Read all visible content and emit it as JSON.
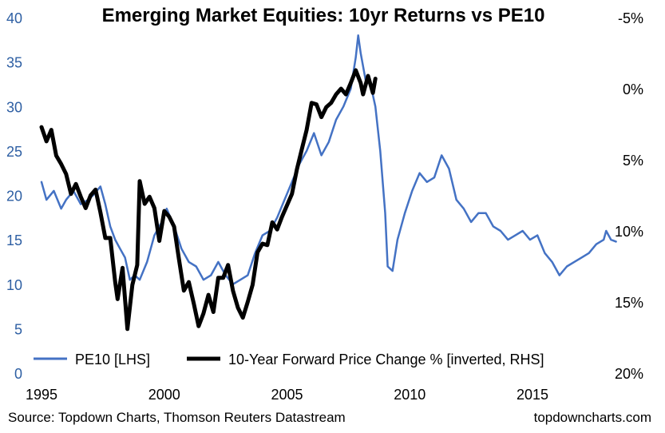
{
  "chart_data": {
    "type": "line",
    "title": "Emerging Market Equities: 10yr Returns vs PE10",
    "x_ticks": [
      "1995",
      "2000",
      "2005",
      "2010",
      "2015"
    ],
    "xlim": [
      1995,
      2019
    ],
    "y_left": {
      "ticks": [
        "0",
        "5",
        "10",
        "15",
        "20",
        "25",
        "30",
        "35",
        "40"
      ],
      "ylim": [
        0,
        40
      ]
    },
    "y_right": {
      "ticks": [
        "-5%",
        "0%",
        "5%",
        "10%",
        "15%",
        "20%"
      ],
      "ylim": [
        -5,
        20
      ],
      "inverted": true
    },
    "grid": false,
    "legend_position": "bottom",
    "series": [
      {
        "name": "PE10 [LHS]",
        "axis": "left",
        "color": "#4472c4",
        "points": [
          [
            1995.0,
            21.5
          ],
          [
            1995.2,
            19.5
          ],
          [
            1995.5,
            20.5
          ],
          [
            1995.8,
            18.5
          ],
          [
            1996.0,
            19.5
          ],
          [
            1996.3,
            20.5
          ],
          [
            1996.6,
            19.0
          ],
          [
            1996.9,
            19.5
          ],
          [
            1997.1,
            20.0
          ],
          [
            1997.4,
            21.0
          ],
          [
            1997.6,
            19.0
          ],
          [
            1997.8,
            16.5
          ],
          [
            1998.0,
            15.0
          ],
          [
            1998.2,
            14.0
          ],
          [
            1998.4,
            13.0
          ],
          [
            1998.6,
            10.5
          ],
          [
            1998.8,
            11.0
          ],
          [
            1999.0,
            10.5
          ],
          [
            1999.3,
            12.5
          ],
          [
            1999.6,
            15.5
          ],
          [
            1999.9,
            17.0
          ],
          [
            2000.1,
            18.5
          ],
          [
            2000.4,
            16.5
          ],
          [
            2000.7,
            14.0
          ],
          [
            2001.0,
            12.5
          ],
          [
            2001.3,
            12.0
          ],
          [
            2001.6,
            10.5
          ],
          [
            2001.9,
            11.0
          ],
          [
            2002.2,
            12.5
          ],
          [
            2002.5,
            11.0
          ],
          [
            2002.8,
            10.0
          ],
          [
            2003.1,
            10.5
          ],
          [
            2003.4,
            11.0
          ],
          [
            2003.7,
            13.5
          ],
          [
            2004.0,
            15.5
          ],
          [
            2004.3,
            16.0
          ],
          [
            2004.6,
            17.5
          ],
          [
            2004.9,
            19.5
          ],
          [
            2005.2,
            21.5
          ],
          [
            2005.5,
            23.5
          ],
          [
            2005.8,
            25.0
          ],
          [
            2006.1,
            27.0
          ],
          [
            2006.4,
            24.5
          ],
          [
            2006.7,
            26.0
          ],
          [
            2007.0,
            28.5
          ],
          [
            2007.3,
            30.0
          ],
          [
            2007.6,
            32.0
          ],
          [
            2007.8,
            35.5
          ],
          [
            2007.9,
            38.0
          ],
          [
            2008.0,
            36.0
          ],
          [
            2008.2,
            33.0
          ],
          [
            2008.4,
            32.5
          ],
          [
            2008.6,
            30.0
          ],
          [
            2008.8,
            25.0
          ],
          [
            2009.0,
            18.0
          ],
          [
            2009.1,
            12.0
          ],
          [
            2009.3,
            11.5
          ],
          [
            2009.5,
            15.0
          ],
          [
            2009.8,
            18.0
          ],
          [
            2010.1,
            20.5
          ],
          [
            2010.4,
            22.5
          ],
          [
            2010.7,
            21.5
          ],
          [
            2011.0,
            22.0
          ],
          [
            2011.3,
            24.5
          ],
          [
            2011.6,
            23.0
          ],
          [
            2011.9,
            19.5
          ],
          [
            2012.2,
            18.5
          ],
          [
            2012.5,
            17.0
          ],
          [
            2012.8,
            18.0
          ],
          [
            2013.1,
            18.0
          ],
          [
            2013.4,
            16.5
          ],
          [
            2013.7,
            16.0
          ],
          [
            2014.0,
            15.0
          ],
          [
            2014.3,
            15.5
          ],
          [
            2014.6,
            16.0
          ],
          [
            2014.9,
            15.0
          ],
          [
            2015.2,
            15.5
          ],
          [
            2015.5,
            13.5
          ],
          [
            2015.8,
            12.5
          ],
          [
            2016.1,
            11.0
          ],
          [
            2016.4,
            12.0
          ],
          [
            2016.7,
            12.5
          ],
          [
            2017.0,
            13.0
          ],
          [
            2017.3,
            13.5
          ],
          [
            2017.6,
            14.5
          ],
          [
            2017.9,
            15.0
          ],
          [
            2018.0,
            16.0
          ],
          [
            2018.2,
            15.0
          ],
          [
            2018.4,
            14.8
          ]
        ]
      },
      {
        "name": "10-Year Forward Price Change % [inverted, RHS]",
        "axis": "right",
        "color": "#000000",
        "points": [
          [
            1995.0,
            2.7
          ],
          [
            1995.2,
            3.7
          ],
          [
            1995.4,
            2.9
          ],
          [
            1995.6,
            4.7
          ],
          [
            1995.8,
            5.3
          ],
          [
            1996.0,
            6.0
          ],
          [
            1996.2,
            7.4
          ],
          [
            1996.4,
            6.7
          ],
          [
            1996.6,
            7.6
          ],
          [
            1996.8,
            8.4
          ],
          [
            1997.0,
            7.5
          ],
          [
            1997.2,
            7.1
          ],
          [
            1997.4,
            8.7
          ],
          [
            1997.6,
            10.5
          ],
          [
            1997.8,
            10.5
          ],
          [
            1998.0,
            13.6
          ],
          [
            1998.1,
            14.8
          ],
          [
            1998.3,
            12.6
          ],
          [
            1998.5,
            16.9
          ],
          [
            1998.7,
            13.8
          ],
          [
            1998.9,
            12.4
          ],
          [
            1999.0,
            6.5
          ],
          [
            1999.2,
            8.1
          ],
          [
            1999.4,
            7.6
          ],
          [
            1999.6,
            8.4
          ],
          [
            1999.8,
            10.7
          ],
          [
            2000.0,
            8.6
          ],
          [
            2000.2,
            9.0
          ],
          [
            2000.4,
            9.7
          ],
          [
            2000.6,
            12.0
          ],
          [
            2000.8,
            14.2
          ],
          [
            2001.0,
            13.6
          ],
          [
            2001.2,
            15.1
          ],
          [
            2001.4,
            16.7
          ],
          [
            2001.6,
            15.8
          ],
          [
            2001.8,
            14.5
          ],
          [
            2002.0,
            15.7
          ],
          [
            2002.2,
            13.3
          ],
          [
            2002.4,
            13.3
          ],
          [
            2002.6,
            12.4
          ],
          [
            2002.8,
            14.2
          ],
          [
            2003.0,
            15.4
          ],
          [
            2003.2,
            16.1
          ],
          [
            2003.4,
            15.0
          ],
          [
            2003.6,
            13.8
          ],
          [
            2003.8,
            11.5
          ],
          [
            2004.0,
            10.9
          ],
          [
            2004.2,
            11.0
          ],
          [
            2004.4,
            9.4
          ],
          [
            2004.6,
            9.9
          ],
          [
            2004.8,
            9.0
          ],
          [
            2005.0,
            8.2
          ],
          [
            2005.2,
            7.4
          ],
          [
            2005.4,
            5.7
          ],
          [
            2005.6,
            4.3
          ],
          [
            2005.8,
            2.9
          ],
          [
            2006.0,
            1.0
          ],
          [
            2006.2,
            1.1
          ],
          [
            2006.4,
            2.0
          ],
          [
            2006.6,
            1.3
          ],
          [
            2006.8,
            1.0
          ],
          [
            2007.0,
            0.4
          ],
          [
            2007.2,
            0.0
          ],
          [
            2007.4,
            0.4
          ],
          [
            2007.6,
            -0.4
          ],
          [
            2007.8,
            -1.3
          ],
          [
            2008.0,
            -0.4
          ],
          [
            2008.1,
            0.4
          ],
          [
            2008.3,
            -0.9
          ],
          [
            2008.5,
            0.3
          ],
          [
            2008.6,
            -0.7
          ]
        ]
      }
    ]
  },
  "footer": {
    "source": "Source: Topdown Charts, Thomson Reuters Datastream",
    "brand": "topdowncharts.com"
  }
}
